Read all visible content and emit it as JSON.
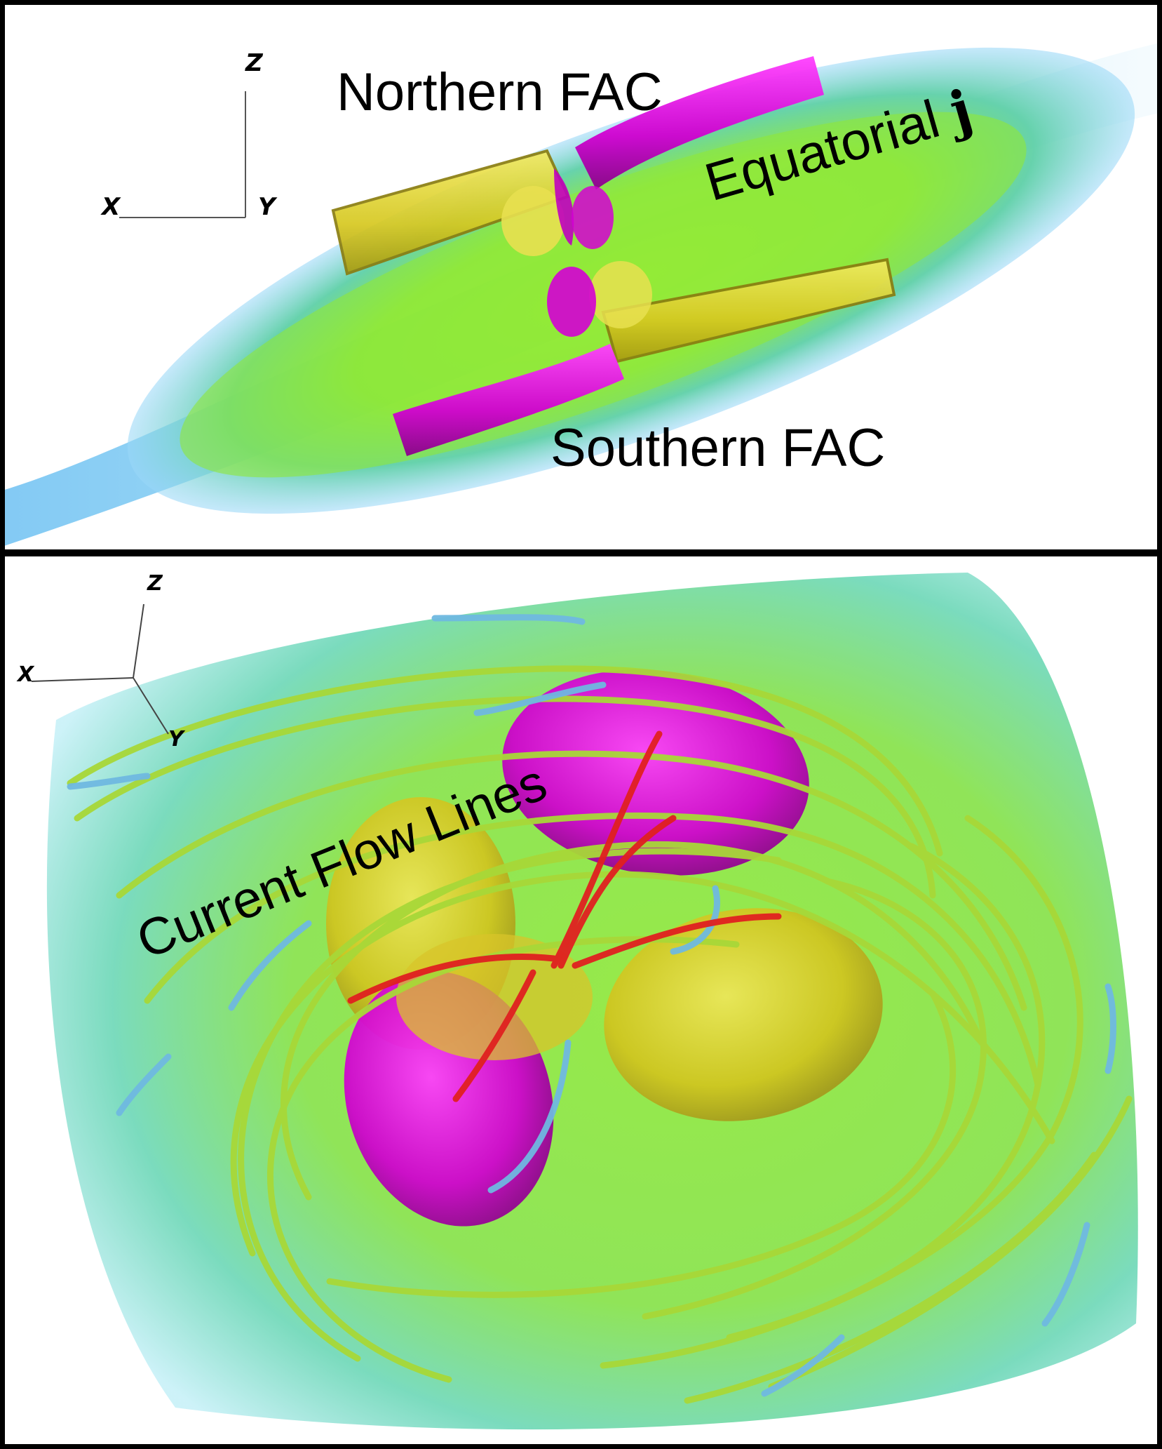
{
  "top_panel": {
    "labels": {
      "northern": "Northern FAC",
      "equatorial": "Equatorial",
      "equatorial_symbol": "j",
      "southern": "Southern FAC"
    },
    "axes": {
      "z": "Z",
      "x": "X",
      "y": "Y"
    }
  },
  "bottom_panel": {
    "labels": {
      "flow_lines": "Current Flow Lines"
    },
    "axes": {
      "z": "Z",
      "x": "X",
      "y": "Y"
    }
  },
  "colors": {
    "northern_fac": "#d800d8",
    "southern_fac": "#d800d8",
    "return_lobes": "#e0d630",
    "equatorial_current_core": "#8ff02a",
    "equatorial_current_edge": "#4fb7f0",
    "flow_lines": "#a8d838",
    "flow_line_high": "#e02020",
    "flow_line_low": "#6fb8e0"
  }
}
